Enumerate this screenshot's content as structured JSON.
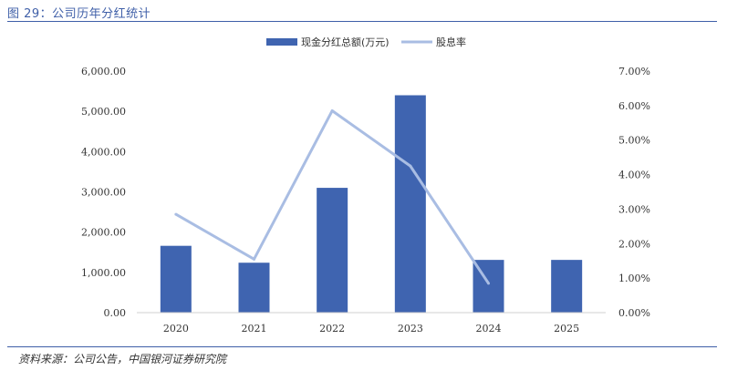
{
  "figure": {
    "title": "图 29：公司历年分红统计",
    "source": "资料来源：公司公告，中国银河证券研究院"
  },
  "chart_data": {
    "type": "bar",
    "categories": [
      "2020",
      "2021",
      "2022",
      "2023",
      "2024",
      "2025"
    ],
    "series": [
      {
        "name": "现金分红总额(万元)",
        "kind": "bar",
        "axis": "left",
        "color": "#3f64b0",
        "values": [
          1660,
          1240,
          3100,
          5400,
          1310,
          1310
        ]
      },
      {
        "name": "股息率",
        "kind": "line",
        "axis": "right",
        "color": "#a9bde3",
        "values": [
          0.0285,
          0.0155,
          0.0585,
          0.0425,
          0.0085,
          null
        ]
      }
    ],
    "y_left": {
      "min": 0,
      "max": 6000,
      "ticks": [
        0,
        1000,
        2000,
        3000,
        4000,
        5000,
        6000
      ],
      "tick_labels": [
        "0.00",
        "1,000.00",
        "2,000.00",
        "3,000.00",
        "4,000.00",
        "5,000.00",
        "6,000.00"
      ]
    },
    "y_right": {
      "min": 0,
      "max": 0.07,
      "ticks": [
        0,
        0.01,
        0.02,
        0.03,
        0.04,
        0.05,
        0.06,
        0.07
      ],
      "tick_labels": [
        "0.00%",
        "1.00%",
        "2.00%",
        "3.00%",
        "4.00%",
        "5.00%",
        "6.00%",
        "7.00%"
      ]
    },
    "grid": false,
    "legend_position": "top-center"
  }
}
